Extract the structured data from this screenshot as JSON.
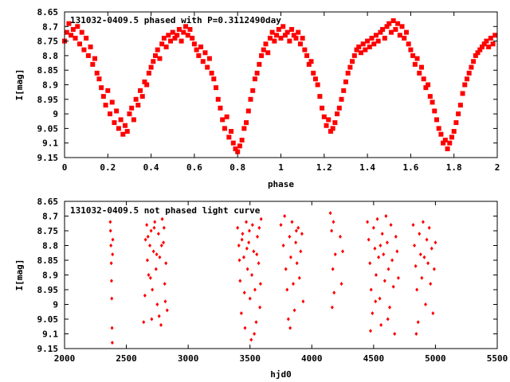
{
  "colors": {
    "marker": "#ff0000",
    "axis": "#000000",
    "background": "#ffffff"
  },
  "chart_data": [
    {
      "type": "scatter",
      "title": "131032-0409.5 phased with P=0.3112490day",
      "xlabel": "phase",
      "ylabel": "I[mag]",
      "xlim": [
        0,
        2
      ],
      "ylim": [
        9.15,
        8.65
      ],
      "y_inverted": true,
      "x_ticks": [
        "0",
        "0.2",
        "0.4",
        "0.6",
        "0.8",
        "1",
        "1.2",
        "1.4",
        "1.6",
        "1.8",
        "2"
      ],
      "y_ticks": [
        "8.65",
        "8.7",
        "8.75",
        "8.8",
        "8.85",
        "8.9",
        "8.95",
        "9",
        "9.05",
        "9.1",
        "9.15"
      ],
      "marker": "filled-square",
      "grid": false,
      "points": [
        [
          0.0,
          8.75
        ],
        [
          0.01,
          8.72
        ],
        [
          0.02,
          8.69
        ],
        [
          0.03,
          8.73
        ],
        [
          0.04,
          8.71
        ],
        [
          0.05,
          8.74
        ],
        [
          0.06,
          8.7
        ],
        [
          0.07,
          8.76
        ],
        [
          0.08,
          8.72
        ],
        [
          0.09,
          8.78
        ],
        [
          0.1,
          8.74
        ],
        [
          0.11,
          8.8
        ],
        [
          0.12,
          8.77
        ],
        [
          0.13,
          8.83
        ],
        [
          0.14,
          8.81
        ],
        [
          0.15,
          8.86
        ],
        [
          0.16,
          8.88
        ],
        [
          0.17,
          8.91
        ],
        [
          0.18,
          8.94
        ],
        [
          0.19,
          8.97
        ],
        [
          0.2,
          8.92
        ],
        [
          0.21,
          9.0
        ],
        [
          0.22,
          8.96
        ],
        [
          0.23,
          9.03
        ],
        [
          0.24,
          8.99
        ],
        [
          0.25,
          9.05
        ],
        [
          0.26,
          9.02
        ],
        [
          0.27,
          9.07
        ],
        [
          0.28,
          9.04
        ],
        [
          0.29,
          9.06
        ],
        [
          0.3,
          9.0
        ],
        [
          0.31,
          8.98
        ],
        [
          0.32,
          9.02
        ],
        [
          0.33,
          8.95
        ],
        [
          0.34,
          8.97
        ],
        [
          0.35,
          8.92
        ],
        [
          0.36,
          8.94
        ],
        [
          0.37,
          8.89
        ],
        [
          0.38,
          8.9
        ],
        [
          0.39,
          8.86
        ],
        [
          0.4,
          8.84
        ],
        [
          0.41,
          8.82
        ],
        [
          0.42,
          8.8
        ],
        [
          0.43,
          8.78
        ],
        [
          0.44,
          8.81
        ],
        [
          0.45,
          8.76
        ],
        [
          0.46,
          8.74
        ],
        [
          0.47,
          8.77
        ],
        [
          0.48,
          8.73
        ],
        [
          0.49,
          8.75
        ],
        [
          0.5,
          8.72
        ],
        [
          0.51,
          8.74
        ],
        [
          0.52,
          8.73
        ],
        [
          0.53,
          8.71
        ],
        [
          0.54,
          8.75
        ],
        [
          0.55,
          8.72
        ],
        [
          0.56,
          8.7
        ],
        [
          0.57,
          8.73
        ],
        [
          0.58,
          8.71
        ],
        [
          0.59,
          8.74
        ],
        [
          0.6,
          8.76
        ],
        [
          0.61,
          8.78
        ],
        [
          0.62,
          8.8
        ],
        [
          0.63,
          8.77
        ],
        [
          0.64,
          8.82
        ],
        [
          0.65,
          8.79
        ],
        [
          0.66,
          8.84
        ],
        [
          0.67,
          8.81
        ],
        [
          0.68,
          8.86
        ],
        [
          0.69,
          8.88
        ],
        [
          0.7,
          8.91
        ],
        [
          0.71,
          8.95
        ],
        [
          0.72,
          8.98
        ],
        [
          0.73,
          9.02
        ],
        [
          0.74,
          9.05
        ],
        [
          0.75,
          9.01
        ],
        [
          0.76,
          9.08
        ],
        [
          0.77,
          9.06
        ],
        [
          0.78,
          9.1
        ],
        [
          0.79,
          9.12
        ],
        [
          0.8,
          9.13
        ],
        [
          0.81,
          9.11
        ],
        [
          0.82,
          9.09
        ],
        [
          0.83,
          9.05
        ],
        [
          0.84,
          9.03
        ],
        [
          0.85,
          8.99
        ],
        [
          0.86,
          8.95
        ],
        [
          0.87,
          8.92
        ],
        [
          0.88,
          8.88
        ],
        [
          0.89,
          8.86
        ],
        [
          0.9,
          8.83
        ],
        [
          0.91,
          8.8
        ],
        [
          0.92,
          8.78
        ],
        [
          0.93,
          8.76
        ],
        [
          0.94,
          8.79
        ],
        [
          0.95,
          8.74
        ],
        [
          0.96,
          8.72
        ],
        [
          0.97,
          8.75
        ],
        [
          0.98,
          8.73
        ],
        [
          0.99,
          8.71
        ],
        [
          1.0,
          8.74
        ],
        [
          1.01,
          8.7
        ],
        [
          1.02,
          8.73
        ],
        [
          1.03,
          8.72
        ],
        [
          1.04,
          8.75
        ],
        [
          1.05,
          8.71
        ],
        [
          1.06,
          8.73
        ],
        [
          1.07,
          8.74
        ],
        [
          1.08,
          8.72
        ],
        [
          1.09,
          8.76
        ],
        [
          1.1,
          8.74
        ],
        [
          1.11,
          8.78
        ],
        [
          1.12,
          8.8
        ],
        [
          1.13,
          8.83
        ],
        [
          1.14,
          8.82
        ],
        [
          1.15,
          8.86
        ],
        [
          1.16,
          8.88
        ],
        [
          1.17,
          8.9
        ],
        [
          1.18,
          8.94
        ],
        [
          1.19,
          8.98
        ],
        [
          1.2,
          9.01
        ],
        [
          1.21,
          9.04
        ],
        [
          1.22,
          9.02
        ],
        [
          1.23,
          9.06
        ],
        [
          1.24,
          9.05
        ],
        [
          1.25,
          9.03
        ],
        [
          1.26,
          9.0
        ],
        [
          1.27,
          8.98
        ],
        [
          1.28,
          8.95
        ],
        [
          1.29,
          8.92
        ],
        [
          1.3,
          8.89
        ],
        [
          1.31,
          8.86
        ],
        [
          1.32,
          8.84
        ],
        [
          1.33,
          8.82
        ],
        [
          1.34,
          8.8
        ],
        [
          1.35,
          8.78
        ],
        [
          1.36,
          8.77
        ],
        [
          1.37,
          8.79
        ],
        [
          1.38,
          8.76
        ],
        [
          1.39,
          8.78
        ],
        [
          1.4,
          8.75
        ],
        [
          1.41,
          8.77
        ],
        [
          1.42,
          8.74
        ],
        [
          1.43,
          8.76
        ],
        [
          1.44,
          8.73
        ],
        [
          1.45,
          8.75
        ],
        [
          1.46,
          8.72
        ],
        [
          1.47,
          8.71
        ],
        [
          1.48,
          8.74
        ],
        [
          1.49,
          8.7
        ],
        [
          1.5,
          8.69
        ],
        [
          1.51,
          8.72
        ],
        [
          1.52,
          8.68
        ],
        [
          1.53,
          8.71
        ],
        [
          1.54,
          8.69
        ],
        [
          1.55,
          8.73
        ],
        [
          1.56,
          8.7
        ],
        [
          1.57,
          8.74
        ],
        [
          1.58,
          8.72
        ],
        [
          1.59,
          8.76
        ],
        [
          1.6,
          8.78
        ],
        [
          1.61,
          8.8
        ],
        [
          1.62,
          8.83
        ],
        [
          1.63,
          8.81
        ],
        [
          1.64,
          8.86
        ],
        [
          1.65,
          8.84
        ],
        [
          1.66,
          8.88
        ],
        [
          1.67,
          8.91
        ],
        [
          1.68,
          8.9
        ],
        [
          1.69,
          8.94
        ],
        [
          1.7,
          8.96
        ],
        [
          1.71,
          8.99
        ],
        [
          1.72,
          9.02
        ],
        [
          1.73,
          9.05
        ],
        [
          1.74,
          9.07
        ],
        [
          1.75,
          9.1
        ],
        [
          1.76,
          9.09
        ],
        [
          1.77,
          9.12
        ],
        [
          1.78,
          9.1
        ],
        [
          1.79,
          9.08
        ],
        [
          1.8,
          9.06
        ],
        [
          1.81,
          9.03
        ],
        [
          1.82,
          9.0
        ],
        [
          1.83,
          8.97
        ],
        [
          1.84,
          8.93
        ],
        [
          1.85,
          8.9
        ],
        [
          1.86,
          8.88
        ],
        [
          1.87,
          8.86
        ],
        [
          1.88,
          8.84
        ],
        [
          1.89,
          8.82
        ],
        [
          1.9,
          8.8
        ],
        [
          1.91,
          8.79
        ],
        [
          1.92,
          8.78
        ],
        [
          1.93,
          8.77
        ],
        [
          1.94,
          8.76
        ],
        [
          1.95,
          8.75
        ],
        [
          1.96,
          8.77
        ],
        [
          1.97,
          8.74
        ],
        [
          1.98,
          8.76
        ],
        [
          1.99,
          8.73
        ]
      ]
    },
    {
      "type": "scatter",
      "title": "131032-0409.5 not phased light curve",
      "xlabel": "hjd0",
      "ylabel": "I[mag]",
      "xlim": [
        2000,
        5500
      ],
      "ylim": [
        9.15,
        8.65
      ],
      "y_inverted": true,
      "x_ticks": [
        "2000",
        "2500",
        "3000",
        "3500",
        "4000",
        "4500",
        "5000",
        "5500"
      ],
      "y_ticks": [
        "8.65",
        "8.7",
        "8.75",
        "8.8",
        "8.85",
        "8.9",
        "8.95",
        "9",
        "9.05",
        "9.1",
        "9.15"
      ],
      "marker": "small-diamond",
      "grid": false,
      "points": [
        [
          2370,
          8.72
        ],
        [
          2372,
          8.75
        ],
        [
          2375,
          8.8
        ],
        [
          2378,
          8.86
        ],
        [
          2380,
          8.92
        ],
        [
          2382,
          8.98
        ],
        [
          2384,
          9.08
        ],
        [
          2386,
          9.13
        ],
        [
          2388,
          8.83
        ],
        [
          2390,
          8.78
        ],
        [
          2655,
          8.78
        ],
        [
          2665,
          8.73
        ],
        [
          2670,
          8.85
        ],
        [
          2680,
          8.9
        ],
        [
          2690,
          8.8
        ],
        [
          2700,
          8.75
        ],
        [
          2705,
          9.05
        ],
        [
          2710,
          8.95
        ],
        [
          2720,
          8.82
        ],
        [
          2730,
          8.72
        ],
        [
          2740,
          8.88
        ],
        [
          2750,
          9.0
        ],
        [
          2760,
          8.76
        ],
        [
          2770,
          8.84
        ],
        [
          2780,
          9.07
        ],
        [
          2790,
          8.71
        ],
        [
          2800,
          8.79
        ],
        [
          2810,
          8.93
        ],
        [
          2820,
          8.86
        ],
        [
          2830,
          9.02
        ],
        [
          2640,
          9.06
        ],
        [
          2650,
          8.97
        ],
        [
          2675,
          8.77
        ],
        [
          2695,
          8.91
        ],
        [
          2725,
          8.74
        ],
        [
          2745,
          8.83
        ],
        [
          2765,
          9.04
        ],
        [
          2785,
          8.8
        ],
        [
          2805,
          8.74
        ],
        [
          2815,
          8.99
        ],
        [
          3400,
          8.74
        ],
        [
          3410,
          8.8
        ],
        [
          3420,
          8.92
        ],
        [
          3430,
          9.03
        ],
        [
          3440,
          8.76
        ],
        [
          3450,
          8.84
        ],
        [
          3460,
          9.08
        ],
        [
          3470,
          8.72
        ],
        [
          3480,
          8.88
        ],
        [
          3490,
          8.79
        ],
        [
          3500,
          8.98
        ],
        [
          3510,
          9.12
        ],
        [
          3520,
          8.73
        ],
        [
          3530,
          8.82
        ],
        [
          3540,
          8.95
        ],
        [
          3550,
          9.06
        ],
        [
          3560,
          8.77
        ],
        [
          3570,
          8.86
        ],
        [
          3580,
          9.01
        ],
        [
          3590,
          8.71
        ],
        [
          3415,
          8.85
        ],
        [
          3435,
          8.78
        ],
        [
          3455,
          8.96
        ],
        [
          3475,
          8.81
        ],
        [
          3495,
          8.75
        ],
        [
          3515,
          8.9
        ],
        [
          3535,
          9.1
        ],
        [
          3555,
          8.83
        ],
        [
          3575,
          8.74
        ],
        [
          3585,
          8.93
        ],
        [
          3750,
          8.73
        ],
        [
          3770,
          8.8
        ],
        [
          3790,
          8.88
        ],
        [
          3800,
          8.95
        ],
        [
          3810,
          9.05
        ],
        [
          3820,
          8.77
        ],
        [
          3830,
          8.84
        ],
        [
          3840,
          8.72
        ],
        [
          3850,
          8.93
        ],
        [
          3860,
          9.02
        ],
        [
          3870,
          8.79
        ],
        [
          3880,
          8.86
        ],
        [
          3890,
          8.74
        ],
        [
          3900,
          8.91
        ],
        [
          3910,
          8.82
        ],
        [
          3920,
          8.76
        ],
        [
          3930,
          8.99
        ],
        [
          3780,
          8.7
        ],
        [
          3825,
          9.08
        ],
        [
          3875,
          8.75
        ],
        [
          4150,
          8.69
        ],
        [
          4160,
          8.75
        ],
        [
          4170,
          8.88
        ],
        [
          4180,
          8.96
        ],
        [
          4190,
          8.83
        ],
        [
          4230,
          8.77
        ],
        [
          4240,
          8.93
        ],
        [
          4250,
          8.82
        ],
        [
          4165,
          9.01
        ],
        [
          4175,
          8.72
        ],
        [
          4450,
          8.72
        ],
        [
          4460,
          8.78
        ],
        [
          4470,
          8.86
        ],
        [
          4480,
          8.95
        ],
        [
          4490,
          9.03
        ],
        [
          4500,
          8.74
        ],
        [
          4510,
          8.81
        ],
        [
          4520,
          8.9
        ],
        [
          4530,
          8.71
        ],
        [
          4540,
          8.84
        ],
        [
          4550,
          8.98
        ],
        [
          4560,
          9.07
        ],
        [
          4570,
          8.76
        ],
        [
          4580,
          8.83
        ],
        [
          4590,
          8.92
        ],
        [
          4600,
          8.7
        ],
        [
          4610,
          8.79
        ],
        [
          4620,
          8.88
        ],
        [
          4630,
          9.01
        ],
        [
          4640,
          8.73
        ],
        [
          4650,
          8.85
        ],
        [
          4660,
          8.94
        ],
        [
          4670,
          9.1
        ],
        [
          4680,
          8.77
        ],
        [
          4690,
          8.82
        ],
        [
          4700,
          8.91
        ],
        [
          4475,
          9.09
        ],
        [
          4515,
          8.99
        ],
        [
          4555,
          8.8
        ],
        [
          4615,
          9.05
        ],
        [
          4820,
          8.73
        ],
        [
          4830,
          8.8
        ],
        [
          4840,
          8.87
        ],
        [
          4850,
          8.95
        ],
        [
          4860,
          9.06
        ],
        [
          4870,
          8.76
        ],
        [
          4880,
          8.83
        ],
        [
          4890,
          8.91
        ],
        [
          4900,
          8.72
        ],
        [
          4910,
          8.84
        ],
        [
          4920,
          9.0
        ],
        [
          4930,
          8.78
        ],
        [
          4940,
          8.86
        ],
        [
          4950,
          8.74
        ],
        [
          4960,
          8.93
        ],
        [
          4970,
          8.81
        ],
        [
          4980,
          9.03
        ],
        [
          4990,
          8.88
        ],
        [
          5000,
          8.79
        ],
        [
          4845,
          9.1
        ]
      ]
    }
  ]
}
